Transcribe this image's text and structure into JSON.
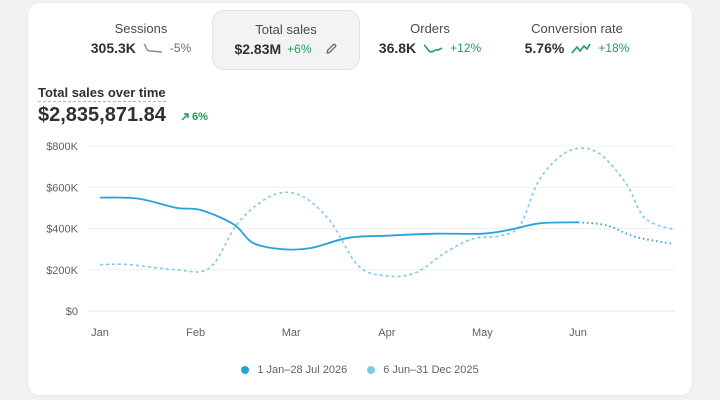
{
  "metrics": [
    {
      "label": "Sessions",
      "value": "305.3K",
      "delta": "-5%",
      "trend": "down"
    },
    {
      "label": "Total sales",
      "value": "$2.83M",
      "delta": "+6%",
      "trend": "up",
      "selected": true
    },
    {
      "label": "Orders",
      "value": "36.8K",
      "delta": "+12%",
      "trend": "up"
    },
    {
      "label": "Conversion rate",
      "value": "5.76%",
      "delta": "+18%",
      "trend": "up"
    }
  ],
  "chart_title": "Total sales over time",
  "total_value": "$2,835,871.84",
  "total_delta": "6%",
  "colors": {
    "primary": "#27a2db",
    "comparison": "#7fcae8",
    "up": "#1f9d55",
    "down": "#8a8a8a"
  },
  "chart_data": {
    "type": "line",
    "x": [
      "Jan",
      "Feb",
      "Mar",
      "Apr",
      "May",
      "Jun"
    ],
    "ylim": [
      0,
      800000
    ],
    "y_ticks": [
      "$0",
      "$200K",
      "$400K",
      "$600K",
      "$800K"
    ],
    "series": [
      {
        "name": "1 Jan–28 Jul 2026",
        "style": "solid-then-dotted",
        "points": [
          [
            0,
            550000
          ],
          [
            0.4,
            545000
          ],
          [
            0.8,
            500000
          ],
          [
            1.05,
            490000
          ],
          [
            1.4,
            420000
          ],
          [
            1.6,
            330000
          ],
          [
            1.9,
            300000
          ],
          [
            2.2,
            305000
          ],
          [
            2.6,
            355000
          ],
          [
            3.0,
            365000
          ],
          [
            3.5,
            375000
          ],
          [
            4.0,
            375000
          ],
          [
            4.3,
            395000
          ],
          [
            4.6,
            425000
          ],
          [
            5.0,
            430000
          ],
          [
            5.3,
            415000
          ],
          [
            5.6,
            360000
          ],
          [
            6.0,
            325000
          ]
        ]
      },
      {
        "name": "6 Jun–31 Dec 2025",
        "style": "dashed",
        "points": [
          [
            0,
            225000
          ],
          [
            0.3,
            225000
          ],
          [
            0.8,
            200000
          ],
          [
            1.15,
            210000
          ],
          [
            1.45,
            430000
          ],
          [
            1.8,
            560000
          ],
          [
            2.1,
            560000
          ],
          [
            2.4,
            440000
          ],
          [
            2.7,
            220000
          ],
          [
            3.0,
            170000
          ],
          [
            3.3,
            185000
          ],
          [
            3.6,
            280000
          ],
          [
            3.9,
            350000
          ],
          [
            4.2,
            365000
          ],
          [
            4.4,
            420000
          ],
          [
            4.6,
            640000
          ],
          [
            4.9,
            775000
          ],
          [
            5.2,
            770000
          ],
          [
            5.5,
            620000
          ],
          [
            5.7,
            450000
          ],
          [
            6.0,
            395000
          ]
        ]
      }
    ]
  },
  "legend": [
    "1 Jan–28 Jul 2026",
    "6 Jun–31 Dec 2025"
  ]
}
